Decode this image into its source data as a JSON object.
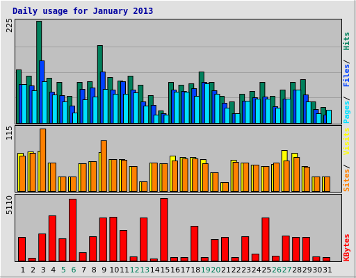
{
  "title": "Daily usage for January 2013",
  "colors": {
    "hits": "#00805c",
    "files": "#0040ff",
    "pages": "#00e0ff",
    "visits": "#ffff00",
    "sites": "#ff8000",
    "kbytes": "#ff0000",
    "weekend": "#00805c",
    "weekday": "#000000",
    "panel": "#c0c0c0",
    "frame_bg": "#e0e0e0",
    "title": "#0000a0"
  },
  "chart_data": [
    {
      "type": "bar",
      "panel": "top",
      "categories": [
        "1",
        "2",
        "3",
        "4",
        "5",
        "6",
        "7",
        "8",
        "9",
        "10",
        "11",
        "12",
        "13",
        "14",
        "15",
        "16",
        "17",
        "18",
        "19",
        "20",
        "21",
        "22",
        "23",
        "24",
        "25",
        "26",
        "27",
        "28",
        "29",
        "30",
        "31"
      ],
      "weekend_days": [
        "5",
        "6",
        "12",
        "13",
        "19",
        "20",
        "26",
        "27"
      ],
      "y_max_label": "225",
      "ylim": [
        0,
        225
      ],
      "legend": [
        "Pages",
        "Files",
        "Hits"
      ],
      "series": [
        {
          "name": "Hits",
          "values": [
            118,
            104,
            225,
            100,
            90,
            60,
            91,
            92,
            172,
            101,
            94,
            104,
            84,
            61,
            27,
            91,
            84,
            88,
            114,
            90,
            60,
            48,
            65,
            71,
            90,
            59,
            73,
            90,
            96,
            48,
            35
          ]
        },
        {
          "name": "Files",
          "values": [
            86,
            82,
            137,
            69,
            61,
            39,
            75,
            78,
            113,
            73,
            92,
            73,
            48,
            40,
            22,
            74,
            70,
            77,
            91,
            72,
            44,
            22,
            49,
            56,
            58,
            36,
            53,
            74,
            62,
            31,
            19
          ]
        },
        {
          "name": "Pages",
          "values": [
            86,
            72,
            92,
            62,
            48,
            23,
            52,
            58,
            75,
            65,
            65,
            68,
            38,
            18,
            18,
            69,
            69,
            60,
            87,
            65,
            34,
            21,
            49,
            54,
            53,
            34,
            53,
            74,
            48,
            22,
            29
          ]
        }
      ]
    },
    {
      "type": "bar",
      "panel": "middle",
      "categories": [
        "1",
        "2",
        "3",
        "4",
        "5",
        "6",
        "7",
        "8",
        "9",
        "10",
        "11",
        "12",
        "13",
        "14",
        "15",
        "16",
        "17",
        "18",
        "19",
        "20",
        "21",
        "22",
        "23",
        "24",
        "25",
        "26",
        "27",
        "28",
        "29",
        "30",
        "31"
      ],
      "y_max_label": "115",
      "ylim": [
        0,
        115
      ],
      "legend": [
        "Sites",
        "Visits"
      ],
      "series": [
        {
          "name": "Visits",
          "values": [
            70,
            72,
            73,
            52,
            26,
            26,
            51,
            54,
            71,
            58,
            58,
            45,
            18,
            52,
            50,
            64,
            62,
            62,
            58,
            34,
            16,
            57,
            52,
            48,
            46,
            49,
            75,
            69,
            46,
            27,
            27
          ]
        },
        {
          "name": "Sites",
          "values": [
            65,
            69,
            114,
            52,
            26,
            26,
            51,
            54,
            92,
            58,
            57,
            45,
            18,
            52,
            50,
            56,
            60,
            59,
            51,
            34,
            16,
            53,
            52,
            48,
            46,
            52,
            55,
            62,
            44,
            27,
            27
          ]
        }
      ]
    },
    {
      "type": "bar",
      "panel": "bottom",
      "categories": [
        "1",
        "2",
        "3",
        "4",
        "5",
        "6",
        "7",
        "8",
        "9",
        "10",
        "11",
        "12",
        "13",
        "14",
        "15",
        "16",
        "17",
        "18",
        "19",
        "20",
        "21",
        "22",
        "23",
        "24",
        "25",
        "26",
        "27",
        "28",
        "29",
        "30",
        "31"
      ],
      "y_max_label": "5110",
      "ylim": [
        0,
        5110
      ],
      "legend": [
        "KBytes"
      ],
      "series": [
        {
          "name": "KBytes",
          "values": [
            1880,
            220,
            2160,
            3600,
            1780,
            4920,
            650,
            1970,
            3470,
            3500,
            2460,
            320,
            3450,
            170,
            5020,
            290,
            260,
            2750,
            270,
            1740,
            1900,
            300,
            1960,
            530,
            3450,
            380,
            1980,
            1880,
            1890,
            310,
            300
          ]
        }
      ]
    }
  ]
}
